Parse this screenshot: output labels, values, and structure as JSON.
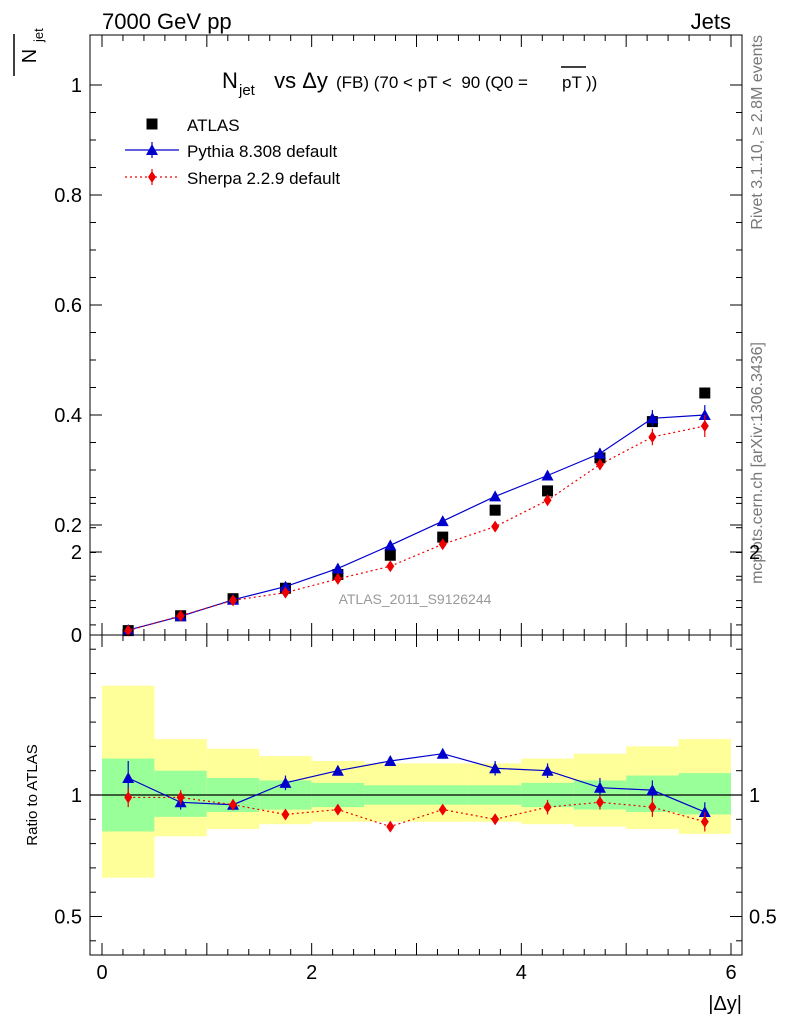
{
  "header": {
    "left": "7000 GeV pp",
    "right": "Jets"
  },
  "side_labels": {
    "top": "Rivet 3.1.10, ≥ 2.8M events",
    "bottom": "mcplots.cern.ch [arXiv:1306.3436]"
  },
  "watermark": "ATLAS_2011_S9126244",
  "colors": {
    "atlas": "#000000",
    "pythia": "#0000cc",
    "sherpa": "#ee0000",
    "band_inner": "#99ff99",
    "band_outer": "#ffff99"
  },
  "chart_data": [
    {
      "type": "scatter",
      "title": {
        "main": "N",
        "main_sub": "jet",
        "vs": " vs Δy ",
        "detail": "(FB) (70 < pT <  90 (Q0 =",
        "detail_over": "pT",
        "detail_end": "))"
      },
      "ylabel": {
        "main": "N",
        "sub": "jet"
      },
      "xlim": [
        0,
        6
      ],
      "ylim": [
        0,
        1.08
      ],
      "yticks": [
        0,
        0.2,
        0.4,
        0.6,
        0.8,
        1
      ],
      "ytick_labels": [
        "0",
        "0.2",
        "0.4",
        "0.6",
        "0.8",
        "1"
      ],
      "legend_position": "top-left",
      "x": [
        0.25,
        0.75,
        1.25,
        1.75,
        2.25,
        2.75,
        3.25,
        3.75,
        4.25,
        4.75,
        5.25,
        5.75
      ],
      "series": [
        {
          "name": "ATLAS",
          "marker": "square",
          "values": [
            0.008,
            0.035,
            0.066,
            0.085,
            0.11,
            0.145,
            0.178,
            0.227,
            0.262,
            0.322,
            0.388,
            0.44
          ]
        },
        {
          "name": "Pythia 8.308 default",
          "marker": "triangle",
          "line": "solid",
          "values": [
            0.009,
            0.034,
            0.064,
            0.088,
            0.121,
            0.163,
            0.207,
            0.252,
            0.29,
            0.33,
            0.394,
            0.4
          ],
          "errors": [
            0.002,
            0.002,
            0.003,
            0.003,
            0.004,
            0.005,
            0.005,
            0.006,
            0.008,
            0.01,
            0.015,
            0.018
          ]
        },
        {
          "name": "Sherpa 2.2.9 default",
          "marker": "diamond",
          "line": "dotted",
          "values": [
            0.008,
            0.035,
            0.063,
            0.077,
            0.102,
            0.125,
            0.165,
            0.197,
            0.245,
            0.31,
            0.36,
            0.38
          ],
          "errors": [
            0.002,
            0.002,
            0.003,
            0.003,
            0.004,
            0.005,
            0.005,
            0.006,
            0.008,
            0.01,
            0.015,
            0.02
          ]
        }
      ]
    },
    {
      "type": "scatter",
      "ylabel": "Ratio to ATLAS",
      "xlabel": "|Δy|",
      "xlim": [
        -0.15,
        6.15
      ],
      "ylim": [
        0.35,
        2.3
      ],
      "yticks": [
        0.5,
        1,
        2
      ],
      "ytick_labels": [
        "0.5",
        "1",
        "2"
      ],
      "xticks": [
        0,
        2,
        4,
        6
      ],
      "xtick_labels": [
        "0",
        "2",
        "4",
        "6"
      ],
      "band_edges": [
        0,
        0.5,
        1,
        1.5,
        2,
        2.5,
        3,
        3.5,
        4,
        4.5,
        5,
        5.5,
        6
      ],
      "band_inner": [
        [
          0.85,
          1.15
        ],
        [
          0.91,
          1.1
        ],
        [
          0.93,
          1.07
        ],
        [
          0.94,
          1.06
        ],
        [
          0.95,
          1.05
        ],
        [
          0.96,
          1.04
        ],
        [
          0.96,
          1.04
        ],
        [
          0.96,
          1.04
        ],
        [
          0.95,
          1.05
        ],
        [
          0.94,
          1.06
        ],
        [
          0.93,
          1.08
        ],
        [
          0.92,
          1.09
        ]
      ],
      "band_outer": [
        [
          0.66,
          1.45
        ],
        [
          0.83,
          1.23
        ],
        [
          0.86,
          1.19
        ],
        [
          0.88,
          1.16
        ],
        [
          0.89,
          1.14
        ],
        [
          0.89,
          1.13
        ],
        [
          0.89,
          1.13
        ],
        [
          0.89,
          1.13
        ],
        [
          0.88,
          1.15
        ],
        [
          0.87,
          1.17
        ],
        [
          0.86,
          1.2
        ],
        [
          0.84,
          1.23
        ]
      ],
      "x": [
        0.25,
        0.75,
        1.25,
        1.75,
        2.25,
        2.75,
        3.25,
        3.75,
        4.25,
        4.75,
        5.25,
        5.75
      ],
      "series": [
        {
          "name": "Pythia 8.308 default",
          "marker": "triangle",
          "line": "solid",
          "values": [
            1.07,
            0.97,
            0.96,
            1.05,
            1.1,
            1.14,
            1.17,
            1.11,
            1.1,
            1.03,
            1.02,
            0.93
          ],
          "errors": [
            0.07,
            0.03,
            0.02,
            0.03,
            0.02,
            0.02,
            0.02,
            0.03,
            0.03,
            0.04,
            0.04,
            0.04
          ]
        },
        {
          "name": "Sherpa 2.2.9 default",
          "marker": "diamond",
          "line": "dotted",
          "values": [
            0.99,
            0.99,
            0.96,
            0.92,
            0.94,
            0.87,
            0.94,
            0.9,
            0.95,
            0.97,
            0.95,
            0.89
          ],
          "errors": [
            0.04,
            0.03,
            0.02,
            0.02,
            0.02,
            0.02,
            0.02,
            0.02,
            0.03,
            0.03,
            0.04,
            0.04
          ]
        }
      ]
    }
  ]
}
